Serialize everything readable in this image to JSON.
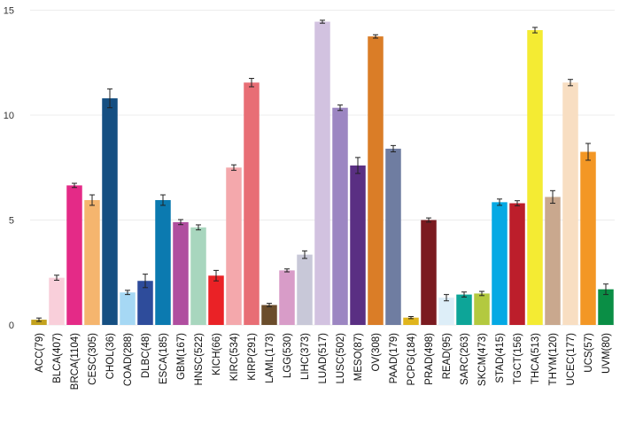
{
  "chart_data": {
    "type": "bar",
    "title": "",
    "xlabel": "",
    "ylabel": "",
    "ylim": [
      0,
      15.0
    ],
    "yticks": [
      0,
      5,
      10,
      15
    ],
    "grid": true,
    "error_bars": true,
    "categories": [
      "ACC(79)",
      "BLCA(407)",
      "BRCA(1104)",
      "CESC(305)",
      "CHOL(36)",
      "COAD(288)",
      "DLBC(48)",
      "ESCA(185)",
      "GBM(167)",
      "HNSC(522)",
      "KICH(66)",
      "KIRC(534)",
      "KIRP(291)",
      "LAML(173)",
      "LGG(530)",
      "LIHC(373)",
      "LUAD(517)",
      "LUSC(502)",
      "MESO(87)",
      "OV(308)",
      "PAAD(179)",
      "PCPG(184)",
      "PRAD(498)",
      "READ(95)",
      "SARC(263)",
      "SKCM(473)",
      "STAD(415)",
      "TGCT(156)",
      "THCA(513)",
      "THYM(120)",
      "UCEC(177)",
      "UCS(57)",
      "UVM(80)"
    ],
    "values": [
      0.25,
      2.25,
      6.65,
      5.95,
      10.8,
      1.55,
      2.1,
      5.95,
      4.9,
      4.65,
      2.35,
      7.5,
      11.55,
      0.95,
      2.6,
      3.35,
      14.45,
      10.35,
      7.6,
      13.75,
      8.4,
      0.35,
      5.0,
      1.3,
      1.45,
      1.5,
      5.85,
      5.8,
      14.05,
      6.1,
      11.55,
      8.25,
      1.7
    ],
    "errors": [
      0.08,
      0.12,
      0.1,
      0.25,
      0.45,
      0.1,
      0.32,
      0.25,
      0.12,
      0.12,
      0.25,
      0.13,
      0.2,
      0.08,
      0.07,
      0.18,
      0.07,
      0.13,
      0.38,
      0.08,
      0.15,
      0.05,
      0.1,
      0.15,
      0.12,
      0.1,
      0.15,
      0.12,
      0.13,
      0.3,
      0.15,
      0.4,
      0.25
    ],
    "colors": [
      "#C3A21E",
      "#F9CFDA",
      "#E42A87",
      "#F5B56E",
      "#154F82",
      "#A6D8F4",
      "#2E4C9B",
      "#0B7AB0",
      "#B04E9F",
      "#A8D6BE",
      "#EA2226",
      "#F4A8AC",
      "#E86E75",
      "#6B4D2B",
      "#D89CC8",
      "#C8C8D8",
      "#D2C2E0",
      "#9C86C2",
      "#5A2F83",
      "#DA7D27",
      "#6F7DA1",
      "#E0B51D",
      "#7B1B20",
      "#DDEEF8",
      "#0DA598",
      "#B3C93F",
      "#05A9E4",
      "#BC1E2B",
      "#F4EB33",
      "#C9A88E",
      "#F8DEC2",
      "#F39725",
      "#0A8E45"
    ]
  }
}
